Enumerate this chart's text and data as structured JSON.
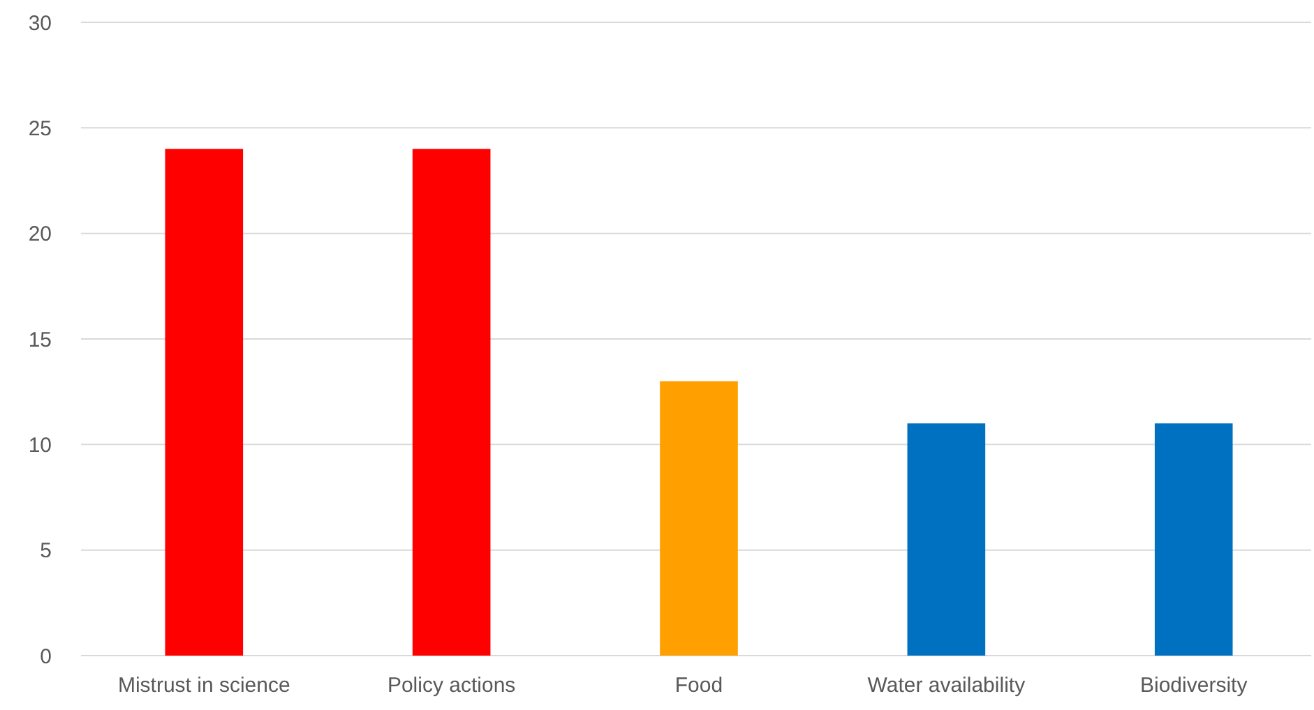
{
  "chart_data": {
    "type": "bar",
    "categories": [
      "Mistrust in science",
      "Policy actions",
      "Food",
      "Water availability",
      "Biodiversity"
    ],
    "values": [
      24,
      24,
      13,
      11,
      11
    ],
    "colors": [
      "#ff0000",
      "#ff0000",
      "#ffa000",
      "#0070c0",
      "#0070c0"
    ],
    "ylim": [
      0,
      30
    ],
    "yticks": [
      0,
      5,
      10,
      15,
      20,
      25,
      30
    ],
    "grid": "y"
  }
}
